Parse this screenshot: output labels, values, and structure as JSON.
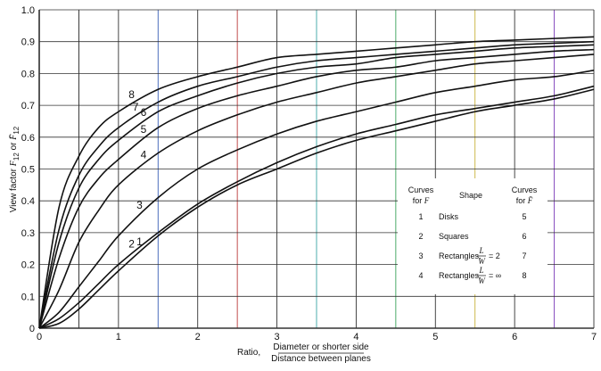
{
  "chart_data": {
    "type": "line",
    "xlim": [
      0,
      7
    ],
    "ylim": [
      0,
      1.0
    ],
    "x_ticks": [
      "0",
      "1",
      "2",
      "3",
      "4",
      "5",
      "6",
      "7"
    ],
    "y_ticks": [
      "0",
      "0.1",
      "0.2",
      "0.3",
      "0.4",
      "0.5",
      "0.6",
      "0.7",
      "0.8",
      "0.9",
      "1.0"
    ],
    "grid": true,
    "ylabel_parts": {
      "prefix": "View factor ",
      "f12": "F",
      "sub12": "12",
      "or": " or ",
      "fbar": "F̄",
      "subbar": "12"
    },
    "xlabel_parts": {
      "prefix": "Ratio,",
      "numerator": "Diameter or shorter side",
      "denominator": "Distance between planes"
    },
    "series": [
      {
        "name": "1",
        "x": [
          0,
          0.25,
          0.5,
          0.75,
          1,
          1.5,
          2,
          2.5,
          3,
          3.5,
          4,
          4.5,
          5,
          5.5,
          6,
          6.5,
          7
        ],
        "y": [
          0,
          0.015,
          0.06,
          0.12,
          0.18,
          0.29,
          0.38,
          0.45,
          0.5,
          0.55,
          0.59,
          0.62,
          0.65,
          0.68,
          0.7,
          0.72,
          0.75
        ]
      },
      {
        "name": "2",
        "x": [
          0,
          0.25,
          0.5,
          0.75,
          1,
          1.5,
          2,
          2.5,
          3,
          3.5,
          4,
          4.5,
          5,
          5.5,
          6,
          6.5,
          7
        ],
        "y": [
          0,
          0.03,
          0.08,
          0.14,
          0.2,
          0.3,
          0.39,
          0.46,
          0.52,
          0.57,
          0.61,
          0.64,
          0.67,
          0.69,
          0.71,
          0.73,
          0.76
        ]
      },
      {
        "name": "3",
        "x": [
          0,
          0.25,
          0.5,
          0.75,
          1,
          1.5,
          2,
          2.5,
          3,
          3.5,
          4,
          4.5,
          5,
          5.5,
          6,
          6.5,
          7
        ],
        "y": [
          0,
          0.05,
          0.13,
          0.21,
          0.29,
          0.41,
          0.5,
          0.56,
          0.61,
          0.65,
          0.68,
          0.71,
          0.74,
          0.76,
          0.78,
          0.79,
          0.81
        ]
      },
      {
        "name": "4",
        "x": [
          0,
          0.25,
          0.5,
          0.75,
          1,
          1.5,
          2,
          2.5,
          3,
          3.5,
          4,
          4.5,
          5,
          5.5,
          6,
          6.5,
          7
        ],
        "y": [
          0,
          0.12,
          0.27,
          0.37,
          0.45,
          0.55,
          0.62,
          0.67,
          0.71,
          0.74,
          0.77,
          0.79,
          0.81,
          0.83,
          0.84,
          0.85,
          0.86
        ]
      },
      {
        "name": "5",
        "x": [
          0,
          0.25,
          0.5,
          0.75,
          1,
          1.5,
          2,
          2.5,
          3,
          3.5,
          4,
          4.5,
          5,
          5.5,
          6,
          6.5,
          7
        ],
        "y": [
          0,
          0.22,
          0.38,
          0.47,
          0.53,
          0.63,
          0.69,
          0.73,
          0.76,
          0.79,
          0.81,
          0.82,
          0.84,
          0.85,
          0.86,
          0.87,
          0.875
        ]
      },
      {
        "name": "6",
        "x": [
          0,
          0.25,
          0.5,
          0.75,
          1,
          1.5,
          2,
          2.5,
          3,
          3.5,
          4,
          4.5,
          5,
          5.5,
          6,
          6.5,
          7
        ],
        "y": [
          0,
          0.27,
          0.44,
          0.53,
          0.59,
          0.68,
          0.73,
          0.77,
          0.8,
          0.82,
          0.83,
          0.85,
          0.86,
          0.87,
          0.88,
          0.885,
          0.89
        ]
      },
      {
        "name": "7",
        "x": [
          0,
          0.25,
          0.5,
          0.75,
          1,
          1.5,
          2,
          2.5,
          3,
          3.5,
          4,
          4.5,
          5,
          5.5,
          6,
          6.5,
          7
        ],
        "y": [
          0,
          0.31,
          0.48,
          0.57,
          0.63,
          0.71,
          0.76,
          0.79,
          0.82,
          0.84,
          0.85,
          0.86,
          0.87,
          0.88,
          0.89,
          0.895,
          0.9
        ]
      },
      {
        "name": "8",
        "x": [
          0,
          0.25,
          0.5,
          0.75,
          1,
          1.5,
          2,
          2.5,
          3,
          3.5,
          4,
          4.5,
          5,
          5.5,
          6,
          6.5,
          7
        ],
        "y": [
          0,
          0.38,
          0.54,
          0.63,
          0.68,
          0.75,
          0.79,
          0.82,
          0.85,
          0.86,
          0.87,
          0.88,
          0.89,
          0.9,
          0.905,
          0.91,
          0.915
        ]
      }
    ],
    "legend": {
      "headers": {
        "curves_f": "Curves",
        "curves_f2": "for",
        "curves_f_sym": "F",
        "shape": "Shape",
        "curves_fbar": "Curves",
        "curves_fbar2": "for",
        "curves_fbar_sym": "F̄"
      },
      "rows": [
        {
          "f": "1",
          "shape": "Disks",
          "fbar": "5"
        },
        {
          "f": "2",
          "shape": "Squares",
          "fbar": "6"
        },
        {
          "f": "3",
          "shape": "Rectangles,",
          "ratio": "= 2",
          "fbar": "7"
        },
        {
          "f": "4",
          "shape": "Rectangles,",
          "ratio": "= ∞",
          "fbar": "8"
        }
      ],
      "ratio_num": "L",
      "ratio_den": "W"
    }
  }
}
